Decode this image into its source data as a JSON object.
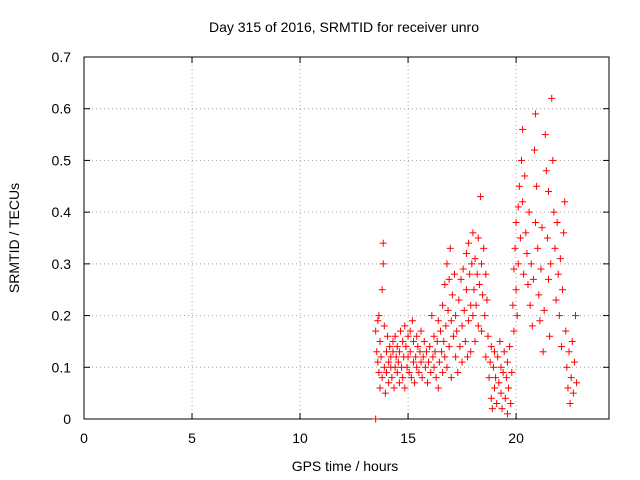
{
  "chart_data": {
    "type": "scatter",
    "title": "Day 315 of 2016, SRMTID for receiver unro",
    "xlabel": "GPS time / hours",
    "ylabel": "SRMTID / TECUs",
    "xlim": [
      0,
      24.3
    ],
    "ylim": [
      0,
      0.7
    ],
    "xticks": [
      0,
      5,
      10,
      15,
      20
    ],
    "yticks": [
      0,
      0.1,
      0.2,
      0.3,
      0.4,
      0.5,
      0.6,
      0.7
    ],
    "xtick_labels": [
      "0",
      "5",
      "10",
      "15",
      "20"
    ],
    "ytick_labels": [
      "0",
      "0.1",
      "0.2",
      "0.3",
      "0.4",
      "0.5",
      "0.6",
      "0.7"
    ],
    "grid": true,
    "marker": "+",
    "color": "#ff0000",
    "series": [
      {
        "name": "SRMTID",
        "points": [
          [
            13.5,
            0.0
          ],
          [
            13.5,
            0.17
          ],
          [
            13.55,
            0.13
          ],
          [
            13.6,
            0.19
          ],
          [
            13.6,
            0.11
          ],
          [
            13.65,
            0.09
          ],
          [
            13.65,
            0.2
          ],
          [
            13.7,
            0.15
          ],
          [
            13.7,
            0.06
          ],
          [
            13.75,
            0.12
          ],
          [
            13.8,
            0.25
          ],
          [
            13.8,
            0.08
          ],
          [
            13.85,
            0.3
          ],
          [
            13.85,
            0.34
          ],
          [
            13.9,
            0.1
          ],
          [
            13.9,
            0.18
          ],
          [
            13.95,
            0.05
          ],
          [
            14.0,
            0.13
          ],
          [
            14.0,
            0.09
          ],
          [
            14.05,
            0.16
          ],
          [
            14.1,
            0.11
          ],
          [
            14.1,
            0.07
          ],
          [
            14.15,
            0.14
          ],
          [
            14.2,
            0.1
          ],
          [
            14.2,
            0.12
          ],
          [
            14.25,
            0.08
          ],
          [
            14.3,
            0.15
          ],
          [
            14.3,
            0.13
          ],
          [
            14.35,
            0.06
          ],
          [
            14.4,
            0.1
          ],
          [
            14.4,
            0.16
          ],
          [
            14.45,
            0.12
          ],
          [
            14.5,
            0.09
          ],
          [
            14.5,
            0.14
          ],
          [
            14.55,
            0.11
          ],
          [
            14.6,
            0.07
          ],
          [
            14.6,
            0.13
          ],
          [
            14.65,
            0.17
          ],
          [
            14.7,
            0.1
          ],
          [
            14.75,
            0.15
          ],
          [
            14.75,
            0.08
          ],
          [
            14.8,
            0.12
          ],
          [
            14.85,
            0.18
          ],
          [
            14.85,
            0.06
          ],
          [
            14.9,
            0.14
          ],
          [
            14.95,
            0.1
          ],
          [
            15.0,
            0.16
          ],
          [
            15.0,
            0.12
          ],
          [
            15.05,
            0.09
          ],
          [
            15.1,
            0.17
          ],
          [
            15.1,
            0.13
          ],
          [
            15.15,
            0.08
          ],
          [
            15.2,
            0.19
          ],
          [
            15.25,
            0.11
          ],
          [
            15.25,
            0.15
          ],
          [
            15.3,
            0.07
          ],
          [
            15.35,
            0.12
          ],
          [
            15.4,
            0.16
          ],
          [
            15.4,
            0.1
          ],
          [
            15.45,
            0.14
          ],
          [
            15.5,
            0.09
          ],
          [
            15.55,
            0.13
          ],
          [
            15.6,
            0.11
          ],
          [
            15.6,
            0.17
          ],
          [
            15.65,
            0.08
          ],
          [
            15.7,
            0.12
          ],
          [
            15.75,
            0.15
          ],
          [
            15.8,
            0.1
          ],
          [
            15.85,
            0.13
          ],
          [
            15.9,
            0.07
          ],
          [
            15.95,
            0.11
          ],
          [
            16.0,
            0.14
          ],
          [
            16.05,
            0.09
          ],
          [
            16.1,
            0.2
          ],
          [
            16.15,
            0.12
          ],
          [
            16.2,
            0.16
          ],
          [
            16.2,
            0.1
          ],
          [
            16.25,
            0.13
          ],
          [
            16.3,
            0.08
          ],
          [
            16.35,
            0.15
          ],
          [
            16.4,
            0.19
          ],
          [
            16.4,
            0.06
          ],
          [
            16.45,
            0.11
          ],
          [
            16.5,
            0.17
          ],
          [
            16.55,
            0.13
          ],
          [
            16.6,
            0.09
          ],
          [
            16.6,
            0.22
          ],
          [
            16.65,
            0.15
          ],
          [
            16.7,
            0.26
          ],
          [
            16.7,
            0.12
          ],
          [
            16.75,
            0.18
          ],
          [
            16.8,
            0.3
          ],
          [
            16.8,
            0.1
          ],
          [
            16.85,
            0.21
          ],
          [
            16.9,
            0.27
          ],
          [
            16.9,
            0.14
          ],
          [
            16.95,
            0.33
          ],
          [
            17.0,
            0.19
          ],
          [
            17.0,
            0.08
          ],
          [
            17.05,
            0.24
          ],
          [
            17.1,
            0.16
          ],
          [
            17.15,
            0.28
          ],
          [
            17.2,
            0.12
          ],
          [
            17.2,
            0.2
          ],
          [
            17.25,
            0.17
          ],
          [
            17.3,
            0.09
          ],
          [
            17.35,
            0.23
          ],
          [
            17.4,
            0.14
          ],
          [
            17.45,
            0.27
          ],
          [
            17.5,
            0.18
          ],
          [
            17.5,
            0.11
          ],
          [
            17.55,
            0.29
          ],
          [
            17.6,
            0.21
          ],
          [
            17.65,
            0.15
          ],
          [
            17.7,
            0.32
          ],
          [
            17.7,
            0.25
          ],
          [
            17.75,
            0.12
          ],
          [
            17.8,
            0.34
          ],
          [
            17.8,
            0.19
          ],
          [
            17.85,
            0.28
          ],
          [
            17.9,
            0.22
          ],
          [
            17.9,
            0.13
          ],
          [
            17.95,
            0.3
          ],
          [
            18.0,
            0.2
          ],
          [
            18.0,
            0.36
          ],
          [
            18.05,
            0.25
          ],
          [
            18.1,
            0.15
          ],
          [
            18.1,
            0.31
          ],
          [
            18.15,
            0.22
          ],
          [
            18.2,
            0.28
          ],
          [
            18.25,
            0.18
          ],
          [
            18.25,
            0.35
          ],
          [
            18.3,
            0.26
          ],
          [
            18.35,
            0.43
          ],
          [
            18.4,
            0.3
          ],
          [
            18.4,
            0.17
          ],
          [
            18.45,
            0.24
          ],
          [
            18.5,
            0.33
          ],
          [
            18.55,
            0.2
          ],
          [
            18.6,
            0.28
          ],
          [
            18.6,
            0.12
          ],
          [
            18.65,
            0.23
          ],
          [
            18.7,
            0.16
          ],
          [
            18.75,
            0.08
          ],
          [
            18.8,
            0.11
          ],
          [
            18.85,
            0.04
          ],
          [
            18.85,
            0.14
          ],
          [
            18.9,
            0.02
          ],
          [
            18.95,
            0.1
          ],
          [
            19.0,
            0.06
          ],
          [
            19.0,
            0.13
          ],
          [
            19.05,
            0.08
          ],
          [
            19.1,
            0.03
          ],
          [
            19.15,
            0.12
          ],
          [
            19.2,
            0.07
          ],
          [
            19.25,
            0.15
          ],
          [
            19.3,
            0.05
          ],
          [
            19.3,
            0.1
          ],
          [
            19.35,
            0.02
          ],
          [
            19.4,
            0.09
          ],
          [
            19.45,
            0.13
          ],
          [
            19.5,
            0.04
          ],
          [
            19.55,
            0.08
          ],
          [
            19.6,
            0.01
          ],
          [
            19.6,
            0.11
          ],
          [
            19.65,
            0.06
          ],
          [
            19.7,
            0.14
          ],
          [
            19.75,
            0.03
          ],
          [
            19.8,
            0.09
          ],
          [
            19.85,
            0.22
          ],
          [
            19.9,
            0.17
          ],
          [
            19.9,
            0.29
          ],
          [
            19.95,
            0.33
          ],
          [
            20.0,
            0.25
          ],
          [
            20.0,
            0.38
          ],
          [
            20.05,
            0.2
          ],
          [
            20.1,
            0.41
          ],
          [
            20.1,
            0.3
          ],
          [
            20.15,
            0.45
          ],
          [
            20.2,
            0.35
          ],
          [
            20.25,
            0.5
          ],
          [
            20.3,
            0.42
          ],
          [
            20.3,
            0.56
          ],
          [
            20.35,
            0.28
          ],
          [
            20.4,
            0.47
          ],
          [
            20.45,
            0.36
          ],
          [
            20.5,
            0.32
          ],
          [
            20.55,
            0.26
          ],
          [
            20.6,
            0.4
          ],
          [
            20.65,
            0.22
          ],
          [
            20.7,
            0.3
          ],
          [
            20.75,
            0.18
          ],
          [
            20.8,
            0.27
          ],
          [
            20.85,
            0.52
          ],
          [
            20.9,
            0.59
          ],
          [
            20.9,
            0.38
          ],
          [
            20.95,
            0.45
          ],
          [
            21.0,
            0.33
          ],
          [
            21.05,
            0.24
          ],
          [
            21.1,
            0.19
          ],
          [
            21.15,
            0.29
          ],
          [
            21.2,
            0.37
          ],
          [
            21.25,
            0.13
          ],
          [
            21.3,
            0.21
          ],
          [
            21.35,
            0.55
          ],
          [
            21.4,
            0.48
          ],
          [
            21.45,
            0.35
          ],
          [
            21.5,
            0.27
          ],
          [
            21.5,
            0.44
          ],
          [
            21.55,
            0.16
          ],
          [
            21.6,
            0.3
          ],
          [
            21.65,
            0.62
          ],
          [
            21.7,
            0.5
          ],
          [
            21.75,
            0.4
          ],
          [
            21.8,
            0.33
          ],
          [
            21.85,
            0.23
          ],
          [
            21.9,
            0.38
          ],
          [
            21.95,
            0.28
          ],
          [
            22.0,
            0.2
          ],
          [
            22.05,
            0.31
          ],
          [
            22.1,
            0.14
          ],
          [
            22.15,
            0.25
          ],
          [
            22.2,
            0.36
          ],
          [
            22.25,
            0.42
          ],
          [
            22.3,
            0.17
          ],
          [
            22.35,
            0.1
          ],
          [
            22.4,
            0.06
          ],
          [
            22.45,
            0.13
          ],
          [
            22.5,
            0.03
          ],
          [
            22.55,
            0.08
          ],
          [
            22.6,
            0.15
          ],
          [
            22.65,
            0.05
          ],
          [
            22.7,
            0.11
          ],
          [
            22.75,
            0.2
          ],
          [
            22.8,
            0.07
          ]
        ]
      }
    ]
  }
}
